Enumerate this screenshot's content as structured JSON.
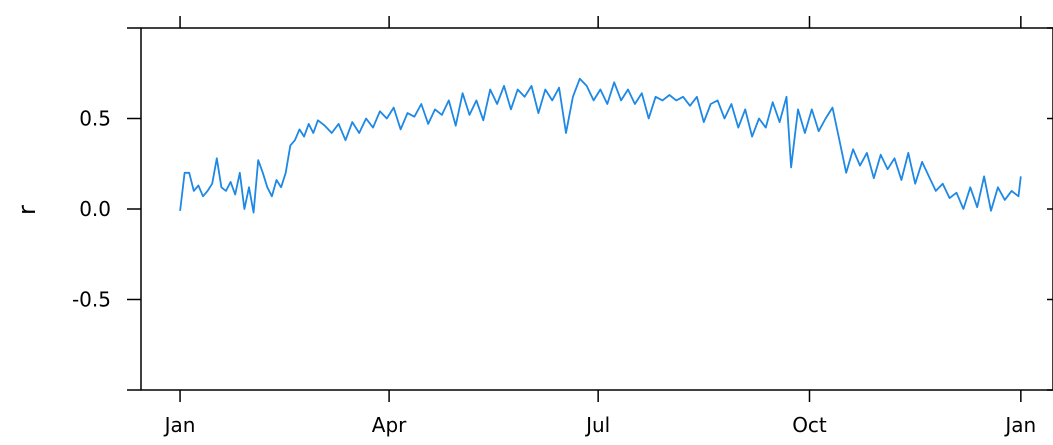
{
  "chart_data": {
    "type": "line",
    "title": "",
    "xlabel": "",
    "ylabel": "r",
    "ylim": [
      -1,
      1
    ],
    "xlim": [
      "2015-12-15",
      "2017-01-15"
    ],
    "x_ticks": [
      "Jan",
      "Apr",
      "Jul",
      "Oct",
      "Jan"
    ],
    "x_tick_dates": [
      "2016-01-01",
      "2016-04-01",
      "2016-07-01",
      "2016-10-01",
      "2017-01-01"
    ],
    "y_ticks": [
      -0.5,
      0.0,
      0.5
    ],
    "y_tick_labels": [
      "-0.5",
      "0.0",
      "0.5"
    ],
    "grid": false,
    "line_color": "#1e88e5",
    "series": [
      {
        "values": [
          [
            "2016-01-01",
            -0.01
          ],
          [
            "2016-01-03",
            0.2
          ],
          [
            "2016-01-05",
            0.2
          ],
          [
            "2016-01-07",
            0.1
          ],
          [
            "2016-01-09",
            0.13
          ],
          [
            "2016-01-11",
            0.07
          ],
          [
            "2016-01-13",
            0.1
          ],
          [
            "2016-01-15",
            0.14
          ],
          [
            "2016-01-17",
            0.28
          ],
          [
            "2016-01-19",
            0.12
          ],
          [
            "2016-01-21",
            0.1
          ],
          [
            "2016-01-23",
            0.15
          ],
          [
            "2016-01-25",
            0.08
          ],
          [
            "2016-01-27",
            0.2
          ],
          [
            "2016-01-29",
            0.0
          ],
          [
            "2016-01-31",
            0.12
          ],
          [
            "2016-02-02",
            -0.02
          ],
          [
            "2016-02-04",
            0.27
          ],
          [
            "2016-02-06",
            0.2
          ],
          [
            "2016-02-08",
            0.12
          ],
          [
            "2016-02-10",
            0.07
          ],
          [
            "2016-02-12",
            0.16
          ],
          [
            "2016-02-14",
            0.12
          ],
          [
            "2016-02-16",
            0.2
          ],
          [
            "2016-02-18",
            0.35
          ],
          [
            "2016-02-20",
            0.38
          ],
          [
            "2016-02-22",
            0.44
          ],
          [
            "2016-02-24",
            0.4
          ],
          [
            "2016-02-26",
            0.47
          ],
          [
            "2016-02-28",
            0.42
          ],
          [
            "2016-03-01",
            0.49
          ],
          [
            "2016-03-04",
            0.46
          ],
          [
            "2016-03-07",
            0.42
          ],
          [
            "2016-03-10",
            0.47
          ],
          [
            "2016-03-13",
            0.38
          ],
          [
            "2016-03-16",
            0.48
          ],
          [
            "2016-03-19",
            0.42
          ],
          [
            "2016-03-22",
            0.5
          ],
          [
            "2016-03-25",
            0.45
          ],
          [
            "2016-03-28",
            0.54
          ],
          [
            "2016-03-31",
            0.5
          ],
          [
            "2016-04-03",
            0.56
          ],
          [
            "2016-04-06",
            0.44
          ],
          [
            "2016-04-09",
            0.53
          ],
          [
            "2016-04-12",
            0.51
          ],
          [
            "2016-04-15",
            0.58
          ],
          [
            "2016-04-18",
            0.47
          ],
          [
            "2016-04-21",
            0.55
          ],
          [
            "2016-04-24",
            0.52
          ],
          [
            "2016-04-27",
            0.6
          ],
          [
            "2016-04-30",
            0.46
          ],
          [
            "2016-05-03",
            0.64
          ],
          [
            "2016-05-06",
            0.52
          ],
          [
            "2016-05-09",
            0.6
          ],
          [
            "2016-05-12",
            0.49
          ],
          [
            "2016-05-15",
            0.66
          ],
          [
            "2016-05-18",
            0.58
          ],
          [
            "2016-05-21",
            0.68
          ],
          [
            "2016-05-24",
            0.55
          ],
          [
            "2016-05-27",
            0.66
          ],
          [
            "2016-05-30",
            0.62
          ],
          [
            "2016-06-02",
            0.68
          ],
          [
            "2016-06-05",
            0.53
          ],
          [
            "2016-06-08",
            0.66
          ],
          [
            "2016-06-11",
            0.6
          ],
          [
            "2016-06-14",
            0.67
          ],
          [
            "2016-06-17",
            0.42
          ],
          [
            "2016-06-20",
            0.62
          ],
          [
            "2016-06-23",
            0.72
          ],
          [
            "2016-06-26",
            0.68
          ],
          [
            "2016-06-29",
            0.6
          ],
          [
            "2016-07-02",
            0.66
          ],
          [
            "2016-07-05",
            0.58
          ],
          [
            "2016-07-08",
            0.7
          ],
          [
            "2016-07-11",
            0.6
          ],
          [
            "2016-07-14",
            0.66
          ],
          [
            "2016-07-17",
            0.58
          ],
          [
            "2016-07-20",
            0.64
          ],
          [
            "2016-07-23",
            0.5
          ],
          [
            "2016-07-26",
            0.62
          ],
          [
            "2016-07-29",
            0.6
          ],
          [
            "2016-08-01",
            0.63
          ],
          [
            "2016-08-04",
            0.6
          ],
          [
            "2016-08-07",
            0.62
          ],
          [
            "2016-08-10",
            0.57
          ],
          [
            "2016-08-13",
            0.62
          ],
          [
            "2016-08-16",
            0.48
          ],
          [
            "2016-08-19",
            0.58
          ],
          [
            "2016-08-22",
            0.6
          ],
          [
            "2016-08-25",
            0.5
          ],
          [
            "2016-08-28",
            0.58
          ],
          [
            "2016-08-31",
            0.45
          ],
          [
            "2016-09-03",
            0.55
          ],
          [
            "2016-09-06",
            0.4
          ],
          [
            "2016-09-09",
            0.5
          ],
          [
            "2016-09-12",
            0.45
          ],
          [
            "2016-09-15",
            0.59
          ],
          [
            "2016-09-18",
            0.48
          ],
          [
            "2016-09-21",
            0.62
          ],
          [
            "2016-09-23",
            0.23
          ],
          [
            "2016-09-26",
            0.55
          ],
          [
            "2016-09-29",
            0.42
          ],
          [
            "2016-10-02",
            0.55
          ],
          [
            "2016-10-05",
            0.43
          ],
          [
            "2016-10-08",
            0.5
          ],
          [
            "2016-10-11",
            0.56
          ],
          [
            "2016-10-14",
            0.38
          ],
          [
            "2016-10-17",
            0.2
          ],
          [
            "2016-10-20",
            0.33
          ],
          [
            "2016-10-23",
            0.24
          ],
          [
            "2016-10-26",
            0.31
          ],
          [
            "2016-10-29",
            0.17
          ],
          [
            "2016-11-01",
            0.3
          ],
          [
            "2016-11-04",
            0.22
          ],
          [
            "2016-11-07",
            0.28
          ],
          [
            "2016-11-10",
            0.16
          ],
          [
            "2016-11-13",
            0.31
          ],
          [
            "2016-11-16",
            0.14
          ],
          [
            "2016-11-19",
            0.26
          ],
          [
            "2016-11-22",
            0.18
          ],
          [
            "2016-11-25",
            0.1
          ],
          [
            "2016-11-28",
            0.14
          ],
          [
            "2016-12-01",
            0.06
          ],
          [
            "2016-12-04",
            0.09
          ],
          [
            "2016-12-07",
            0.0
          ],
          [
            "2016-12-10",
            0.12
          ],
          [
            "2016-12-13",
            0.01
          ],
          [
            "2016-12-16",
            0.18
          ],
          [
            "2016-12-19",
            -0.01
          ],
          [
            "2016-12-22",
            0.12
          ],
          [
            "2016-12-25",
            0.05
          ],
          [
            "2016-12-28",
            0.1
          ],
          [
            "2016-12-31",
            0.07
          ],
          [
            "2017-01-01",
            0.18
          ]
        ]
      }
    ]
  }
}
